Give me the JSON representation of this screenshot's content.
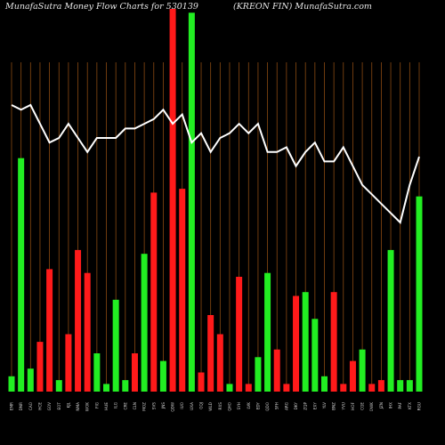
{
  "header": {
    "title_left": "MunafaSutra  Money Flow  Charts for 530139",
    "title_right": "(KREON  FIN) MunafaSutra.com"
  },
  "colors": {
    "background": "#000000",
    "grid": "#8a4a12",
    "up_bar": "#22ee22",
    "down_bar": "#ff1a1a",
    "price_line": "#ffffff"
  },
  "chart_data": {
    "type": "bar",
    "title": "MunafaSutra  Money Flow  Charts for 530139",
    "grid": true,
    "categories": [
      "EMR",
      "DNR",
      "CAO",
      "HCE",
      "GOV",
      "EOT",
      "KJL",
      "NMA",
      "WOK",
      "FIG",
      "HUE",
      "ILG",
      "CRE",
      "CLN",
      "MOZ",
      "SVS",
      "JNS",
      "QDW",
      "IUO",
      "UXA",
      "GQJ",
      "WLD",
      "RXS",
      "QHO",
      "SYH",
      "LVK",
      "EDY",
      "QDO",
      "SFH",
      "ARG",
      "DKY",
      "ZQP",
      "EXY",
      "YLV",
      "BNZ",
      "YVU",
      "HOF",
      "CGE",
      "OWK",
      "JZN",
      "IHX",
      "PAF",
      "KTX",
      "RGU"
    ],
    "bar_colors": [
      "green",
      "green",
      "green",
      "red",
      "red",
      "green",
      "red",
      "red",
      "red",
      "green",
      "green",
      "green",
      "green",
      "red",
      "green",
      "red",
      "green",
      "red",
      "red",
      "green",
      "red",
      "red",
      "red",
      "green",
      "red",
      "red",
      "green",
      "green",
      "red",
      "red",
      "red",
      "green",
      "green",
      "green",
      "red",
      "red",
      "red",
      "green",
      "red",
      "red",
      "green",
      "green",
      "green",
      "green"
    ],
    "bar_values": [
      4,
      61,
      6,
      13,
      32,
      3,
      15,
      37,
      31,
      10,
      2,
      24,
      3,
      10,
      36,
      52,
      8,
      100,
      53,
      99,
      5,
      20,
      15,
      2,
      30,
      2,
      9,
      31,
      11,
      2,
      25,
      26,
      19,
      4,
      26,
      2,
      8,
      11,
      2,
      3,
      37,
      3,
      3,
      51
    ],
    "line_values": [
      62,
      61,
      62,
      58,
      54,
      55,
      58,
      55,
      52,
      55,
      55,
      55,
      57,
      57,
      58,
      59,
      61,
      58,
      60,
      54,
      56,
      52,
      55,
      56,
      58,
      56,
      58,
      52,
      52,
      53,
      49,
      52,
      54,
      50,
      50,
      53,
      49,
      45,
      43,
      41,
      39,
      37,
      45,
      51
    ]
  }
}
